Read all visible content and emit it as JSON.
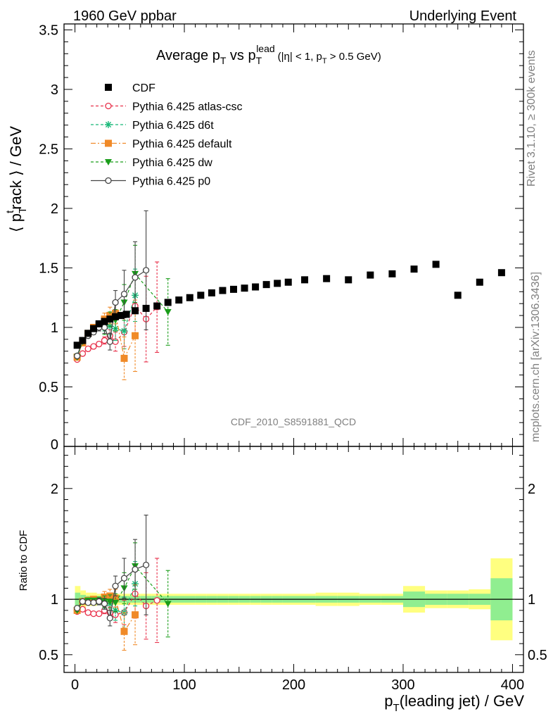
{
  "header": {
    "left": "1960 GeV ppbar",
    "right": "Underlying Event",
    "ref_label": "CDF_2010_S8591881_QCD",
    "side_top": "Rivet 3.1.10, ≥ 300k events",
    "side_bottom": "mcplots.cern.ch [arXiv:1306.3436]"
  },
  "chart_data": [
    {
      "type": "scatter",
      "title_parts": {
        "pre": "Average p",
        "sub1": "T",
        "mid": " vs p",
        "sub2": "T",
        "sup2": "lead",
        "cut_pre": "(|η| < 1, p",
        "cut_sub": "T",
        "cut_post": " > 0.5 GeV)"
      },
      "ylabel_parts": {
        "pre": "⟨ p",
        "sub": "T",
        "sup": "t",
        "post": "rack ⟩ / GeV"
      },
      "xlim": [
        -10,
        410
      ],
      "ylim": [
        0,
        3.55
      ],
      "yticks": [
        {
          "v": 0,
          "l": "0"
        },
        {
          "v": 0.5,
          "l": "0.5"
        },
        {
          "v": 1,
          "l": "1"
        },
        {
          "v": 1.5,
          "l": "1.5"
        },
        {
          "v": 2,
          "l": "2"
        },
        {
          "v": 2.5,
          "l": "2.5"
        },
        {
          "v": 3,
          "l": "3"
        },
        {
          "v": 3.5,
          "l": "3.5"
        }
      ],
      "legend_position": "top-left",
      "series": [
        {
          "name": "CDF",
          "color": "#000000",
          "marker": "square-filled",
          "line": "none",
          "points": [
            [
              2,
              0.85
            ],
            [
              7,
              0.89
            ],
            [
              12,
              0.95
            ],
            [
              17,
              0.99
            ],
            [
              22,
              1.03
            ],
            [
              27,
              1.05
            ],
            [
              32,
              1.07
            ],
            [
              37,
              1.09
            ],
            [
              42,
              1.1
            ],
            [
              47,
              1.11
            ],
            [
              55,
              1.14
            ],
            [
              65,
              1.16
            ],
            [
              75,
              1.18
            ],
            [
              85,
              1.21
            ],
            [
              95,
              1.23
            ],
            [
              105,
              1.25
            ],
            [
              115,
              1.27
            ],
            [
              125,
              1.29
            ],
            [
              135,
              1.31
            ],
            [
              145,
              1.32
            ],
            [
              155,
              1.33
            ],
            [
              165,
              1.34
            ],
            [
              175,
              1.36
            ],
            [
              185,
              1.37
            ],
            [
              195,
              1.38
            ],
            [
              210,
              1.4
            ],
            [
              230,
              1.41
            ],
            [
              250,
              1.4
            ],
            [
              270,
              1.44
            ],
            [
              290,
              1.45
            ],
            [
              310,
              1.49
            ],
            [
              330,
              1.53
            ],
            [
              350,
              1.27
            ],
            [
              370,
              1.38
            ],
            [
              390,
              1.46
            ]
          ]
        },
        {
          "name": "Pythia 6.425 atlas-csc",
          "color": "#e8304a",
          "marker": "circle-open",
          "line": "dashed",
          "points": [
            [
              2,
              0.73
            ],
            [
              7,
              0.78
            ],
            [
              12,
              0.82
            ],
            [
              17,
              0.84
            ],
            [
              22,
              0.86
            ],
            [
              27,
              0.89
            ],
            [
              32,
              0.93
            ],
            [
              37,
              0.88
            ],
            [
              45,
              0.96
            ],
            [
              55,
              1.18
            ],
            [
              65,
              1.07
            ],
            [
              75,
              1.17
            ]
          ],
          "errors": [
            0.01,
            0.01,
            0.01,
            0.01,
            0.02,
            0.03,
            0.05,
            0.08,
            0.12,
            0.25,
            0.36,
            0.38
          ]
        },
        {
          "name": "Pythia 6.425 d6t",
          "color": "#17b878",
          "marker": "star",
          "line": "dashed",
          "points": [
            [
              2,
              0.76
            ],
            [
              7,
              0.88
            ],
            [
              12,
              0.95
            ],
            [
              17,
              0.99
            ],
            [
              22,
              1.01
            ],
            [
              27,
              1.02
            ],
            [
              32,
              1.01
            ],
            [
              37,
              0.99
            ],
            [
              45,
              0.97
            ],
            [
              55,
              1.27
            ]
          ],
          "errors": [
            0.01,
            0.01,
            0.01,
            0.02,
            0.03,
            0.05,
            0.07,
            0.1,
            0.15,
            0.22
          ]
        },
        {
          "name": "Pythia 6.425 default",
          "color": "#f08a28",
          "marker": "square-filled",
          "line": "dashdot",
          "points": [
            [
              2,
              0.75
            ],
            [
              7,
              0.87
            ],
            [
              12,
              0.95
            ],
            [
              17,
              1.0
            ],
            [
              22,
              1.02
            ],
            [
              27,
              1.07
            ],
            [
              32,
              1.1
            ],
            [
              37,
              1.12
            ],
            [
              45,
              0.74
            ],
            [
              55,
              0.93
            ]
          ],
          "errors": [
            0.01,
            0.01,
            0.01,
            0.02,
            0.03,
            0.05,
            0.07,
            0.09,
            0.18,
            0.3
          ]
        },
        {
          "name": "Pythia 6.425 dw",
          "color": "#1a9d1a",
          "marker": "triangle-down",
          "line": "dashed",
          "points": [
            [
              2,
              0.75
            ],
            [
              7,
              0.88
            ],
            [
              12,
              0.95
            ],
            [
              17,
              0.99
            ],
            [
              22,
              1.02
            ],
            [
              27,
              0.99
            ],
            [
              32,
              1.07
            ],
            [
              37,
              1.06
            ],
            [
              45,
              1.21
            ],
            [
              55,
              1.45
            ],
            [
              85,
              1.13
            ]
          ],
          "errors": [
            0.01,
            0.01,
            0.01,
            0.02,
            0.03,
            0.05,
            0.06,
            0.09,
            0.15,
            0.24,
            0.28
          ]
        },
        {
          "name": "Pythia 6.425 p0",
          "color": "#444444",
          "marker": "circle-open",
          "line": "solid",
          "points": [
            [
              2,
              0.76
            ],
            [
              7,
              0.89
            ],
            [
              12,
              0.93
            ],
            [
              17,
              0.96
            ],
            [
              22,
              1.0
            ],
            [
              27,
              1.0
            ],
            [
              32,
              0.88
            ],
            [
              37,
              1.21
            ],
            [
              45,
              1.28
            ],
            [
              55,
              1.42
            ],
            [
              65,
              1.48
            ]
          ],
          "errors": [
            0.01,
            0.01,
            0.01,
            0.02,
            0.03,
            0.05,
            0.07,
            0.1,
            0.2,
            0.3,
            0.5
          ]
        }
      ]
    },
    {
      "type": "scatter",
      "ylabel": "Ratio to CDF",
      "xlabel_parts": {
        "pre": "p",
        "sub": "T",
        "post": "(leading jet) / GeV"
      },
      "xlim": [
        -10,
        410
      ],
      "ylim": [
        0.34,
        2.38
      ],
      "xticks": [
        {
          "v": 0,
          "l": "0"
        },
        {
          "v": 100,
          "l": "100"
        },
        {
          "v": 200,
          "l": "200"
        },
        {
          "v": 300,
          "l": "300"
        },
        {
          "v": 400,
          "l": "400"
        }
      ],
      "yticks": [
        {
          "v": 0.5,
          "l": "0.5"
        },
        {
          "v": 1,
          "l": "1"
        },
        {
          "v": 2,
          "l": "2"
        }
      ],
      "uncertainty_bands": {
        "inner_color": "#90ee90",
        "outer_color": "#ffff80",
        "bins": [
          [
            0,
            5,
            0.06,
            0.12
          ],
          [
            5,
            10,
            0.04,
            0.08
          ],
          [
            10,
            15,
            0.03,
            0.06
          ],
          [
            15,
            20,
            0.03,
            0.06
          ],
          [
            20,
            25,
            0.03,
            0.05
          ],
          [
            25,
            30,
            0.03,
            0.05
          ],
          [
            30,
            35,
            0.03,
            0.05
          ],
          [
            35,
            40,
            0.03,
            0.05
          ],
          [
            40,
            50,
            0.03,
            0.05
          ],
          [
            50,
            60,
            0.03,
            0.05
          ],
          [
            60,
            70,
            0.03,
            0.05
          ],
          [
            70,
            80,
            0.03,
            0.05
          ],
          [
            80,
            90,
            0.03,
            0.05
          ],
          [
            90,
            100,
            0.03,
            0.05
          ],
          [
            100,
            110,
            0.03,
            0.05
          ],
          [
            110,
            120,
            0.03,
            0.05
          ],
          [
            120,
            130,
            0.03,
            0.05
          ],
          [
            130,
            140,
            0.03,
            0.05
          ],
          [
            140,
            150,
            0.03,
            0.05
          ],
          [
            150,
            160,
            0.03,
            0.05
          ],
          [
            160,
            170,
            0.03,
            0.05
          ],
          [
            170,
            180,
            0.03,
            0.05
          ],
          [
            180,
            190,
            0.03,
            0.05
          ],
          [
            190,
            200,
            0.03,
            0.05
          ],
          [
            200,
            220,
            0.03,
            0.05
          ],
          [
            220,
            240,
            0.03,
            0.06
          ],
          [
            240,
            260,
            0.03,
            0.06
          ],
          [
            260,
            280,
            0.03,
            0.05
          ],
          [
            280,
            300,
            0.03,
            0.05
          ],
          [
            300,
            320,
            0.07,
            0.12
          ],
          [
            320,
            340,
            0.05,
            0.08
          ],
          [
            340,
            360,
            0.05,
            0.08
          ],
          [
            360,
            380,
            0.05,
            0.09
          ],
          [
            380,
            400,
            0.19,
            0.37
          ]
        ]
      },
      "series": [
        {
          "name": "Pythia 6.425 atlas-csc",
          "points": [
            [
              2,
              0.89
            ],
            [
              7,
              0.91
            ],
            [
              12,
              0.88
            ],
            [
              17,
              0.87
            ],
            [
              22,
              0.87
            ],
            [
              27,
              0.9
            ],
            [
              32,
              0.88
            ],
            [
              37,
              0.86
            ],
            [
              45,
              0.88
            ],
            [
              55,
              1.05
            ],
            [
              65,
              0.94
            ],
            [
              75,
              0.99
            ]
          ],
          "errors": [
            0.01,
            0.01,
            0.01,
            0.01,
            0.02,
            0.03,
            0.05,
            0.07,
            0.11,
            0.22,
            0.3,
            0.38
          ]
        },
        {
          "name": "Pythia 6.425 d6t",
          "points": [
            [
              2,
              0.9
            ],
            [
              7,
              0.98
            ],
            [
              12,
              0.99
            ],
            [
              17,
              0.99
            ],
            [
              22,
              0.98
            ],
            [
              27,
              0.97
            ],
            [
              32,
              0.96
            ],
            [
              37,
              0.9
            ],
            [
              45,
              0.88
            ],
            [
              55,
              1.14
            ]
          ],
          "errors": [
            0.01,
            0.01,
            0.01,
            0.02,
            0.03,
            0.05,
            0.06,
            0.09,
            0.14,
            0.2
          ]
        },
        {
          "name": "Pythia 6.425 default",
          "points": [
            [
              2,
              0.9
            ],
            [
              7,
              0.98
            ],
            [
              12,
              0.99
            ],
            [
              17,
              1.0
            ],
            [
              22,
              0.99
            ],
            [
              27,
              1.02
            ],
            [
              32,
              1.03
            ],
            [
              37,
              1.01
            ],
            [
              45,
              0.71
            ],
            [
              55,
              0.86
            ]
          ],
          "errors": [
            0.01,
            0.01,
            0.01,
            0.02,
            0.03,
            0.05,
            0.06,
            0.08,
            0.17,
            0.27
          ]
        },
        {
          "name": "Pythia 6.425 dw",
          "points": [
            [
              2,
              0.9
            ],
            [
              7,
              0.98
            ],
            [
              12,
              0.99
            ],
            [
              17,
              0.99
            ],
            [
              22,
              0.99
            ],
            [
              27,
              0.98
            ],
            [
              32,
              0.98
            ],
            [
              37,
              0.97
            ],
            [
              45,
              1.1
            ],
            [
              55,
              1.3
            ],
            [
              85,
              0.96
            ]
          ],
          "errors": [
            0.01,
            0.01,
            0.01,
            0.02,
            0.03,
            0.05,
            0.06,
            0.08,
            0.14,
            0.21,
            0.3
          ]
        },
        {
          "name": "Pythia 6.425 p0",
          "points": [
            [
              2,
              0.92
            ],
            [
              7,
              0.98
            ],
            [
              12,
              0.97
            ],
            [
              17,
              0.97
            ],
            [
              22,
              0.98
            ],
            [
              27,
              0.96
            ],
            [
              32,
              0.83
            ],
            [
              37,
              1.12
            ],
            [
              45,
              1.19
            ],
            [
              55,
              1.27
            ],
            [
              65,
              1.31
            ]
          ],
          "errors": [
            0.01,
            0.01,
            0.01,
            0.02,
            0.03,
            0.05,
            0.07,
            0.09,
            0.18,
            0.27,
            0.45
          ]
        }
      ]
    }
  ]
}
